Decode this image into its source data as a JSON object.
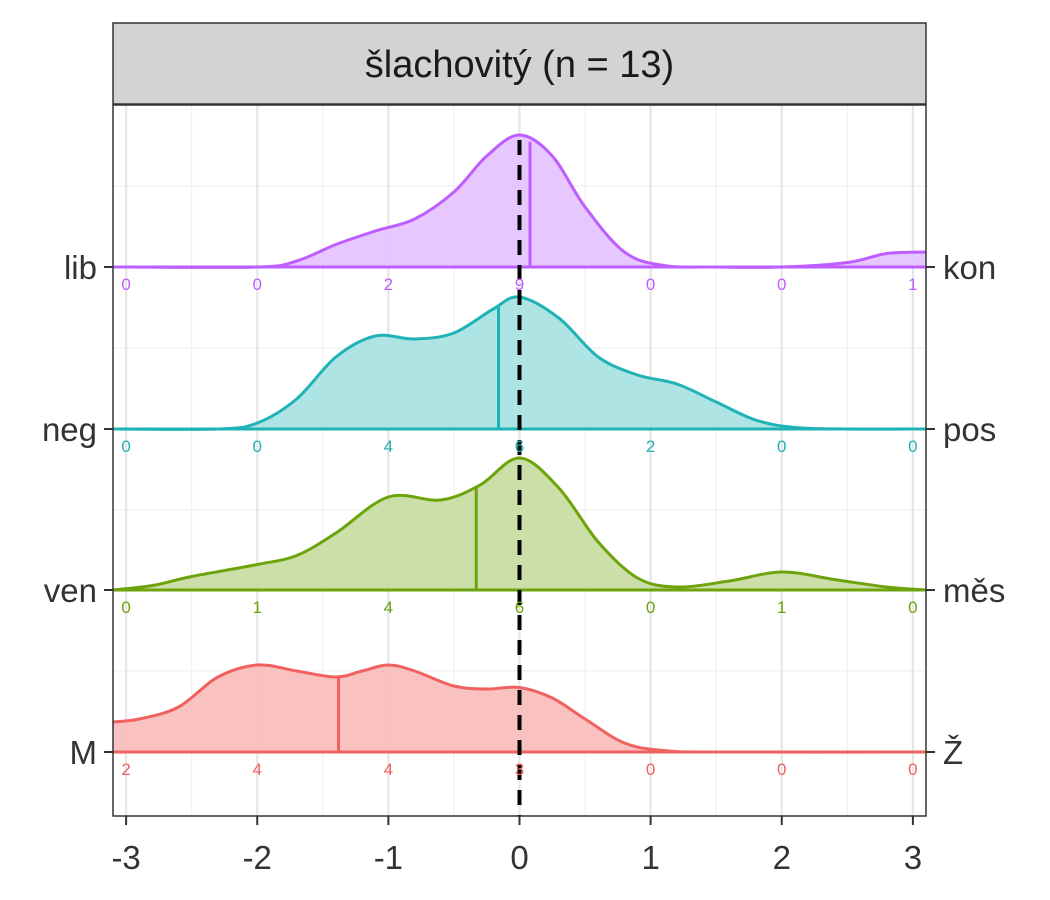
{
  "chart_data": {
    "type": "ridgeline",
    "title": "šlachovitý (n = 13)",
    "xlabel": "",
    "ylabel": "",
    "xlim": [
      -3.1,
      3.1
    ],
    "x_ticks": [
      -3,
      -2,
      -1,
      0,
      1,
      2,
      3
    ],
    "x_tick_labels": [
      "-3",
      "-2",
      "-1",
      "0",
      "1",
      "2",
      "3"
    ],
    "reference_line_x": 0,
    "bin_positions": [
      -3,
      -2,
      -1,
      0,
      1,
      2,
      3
    ],
    "grid": true,
    "series": [
      {
        "left_label": "M",
        "right_label": "Ž",
        "color": "#F0625F",
        "fill": "#F8BBBA",
        "mean": -1.38,
        "counts": [
          2,
          4,
          4,
          3,
          0,
          0,
          0
        ],
        "density": [
          [
            -3.1,
            0.2
          ],
          [
            -2.9,
            0.22
          ],
          [
            -2.6,
            0.3
          ],
          [
            -2.3,
            0.5
          ],
          [
            -2.0,
            0.58
          ],
          [
            -1.7,
            0.54
          ],
          [
            -1.4,
            0.5
          ],
          [
            -1.2,
            0.54
          ],
          [
            -1.0,
            0.58
          ],
          [
            -0.8,
            0.54
          ],
          [
            -0.5,
            0.44
          ],
          [
            -0.25,
            0.42
          ],
          [
            0.0,
            0.43
          ],
          [
            0.25,
            0.36
          ],
          [
            0.5,
            0.22
          ],
          [
            0.8,
            0.06
          ],
          [
            1.1,
            0.01
          ],
          [
            1.5,
            0.0
          ],
          [
            3.1,
            0.0
          ]
        ]
      },
      {
        "left_label": "ven",
        "right_label": "měs",
        "color": "#6DA30B",
        "fill": "#C6DB9E",
        "mean": -0.33,
        "counts": [
          0,
          1,
          4,
          6,
          0,
          1,
          0
        ],
        "density": [
          [
            -3.1,
            0.0
          ],
          [
            -2.8,
            0.03
          ],
          [
            -2.5,
            0.09
          ],
          [
            -2.0,
            0.17
          ],
          [
            -1.7,
            0.23
          ],
          [
            -1.4,
            0.38
          ],
          [
            -1.0,
            0.62
          ],
          [
            -0.6,
            0.6
          ],
          [
            -0.3,
            0.7
          ],
          [
            0.0,
            0.88
          ],
          [
            0.3,
            0.68
          ],
          [
            0.6,
            0.32
          ],
          [
            0.9,
            0.08
          ],
          [
            1.2,
            0.02
          ],
          [
            1.6,
            0.06
          ],
          [
            2.0,
            0.12
          ],
          [
            2.4,
            0.07
          ],
          [
            2.8,
            0.02
          ],
          [
            3.1,
            0.0
          ]
        ]
      },
      {
        "left_label": "neg",
        "right_label": "pos",
        "color": "#1FB3B5",
        "fill": "#A6E1E2",
        "mean": -0.16,
        "counts": [
          0,
          0,
          4,
          6,
          2,
          0,
          0
        ],
        "density": [
          [
            -3.1,
            0.0
          ],
          [
            -2.3,
            0.0
          ],
          [
            -2.0,
            0.04
          ],
          [
            -1.7,
            0.2
          ],
          [
            -1.4,
            0.48
          ],
          [
            -1.1,
            0.62
          ],
          [
            -0.8,
            0.6
          ],
          [
            -0.5,
            0.64
          ],
          [
            -0.2,
            0.8
          ],
          [
            0.0,
            0.88
          ],
          [
            0.3,
            0.74
          ],
          [
            0.6,
            0.48
          ],
          [
            0.9,
            0.36
          ],
          [
            1.2,
            0.3
          ],
          [
            1.5,
            0.18
          ],
          [
            1.8,
            0.06
          ],
          [
            2.1,
            0.01
          ],
          [
            2.5,
            0.0
          ],
          [
            3.1,
            0.0
          ]
        ]
      },
      {
        "left_label": "lib",
        "right_label": "kon",
        "color": "#BE5EFF",
        "fill": "#E4C1FF",
        "mean": 0.08,
        "counts": [
          0,
          0,
          2,
          9,
          0,
          0,
          1
        ],
        "density": [
          [
            -3.1,
            0.0
          ],
          [
            -2.0,
            0.0
          ],
          [
            -1.7,
            0.04
          ],
          [
            -1.4,
            0.15
          ],
          [
            -1.1,
            0.24
          ],
          [
            -0.8,
            0.32
          ],
          [
            -0.5,
            0.5
          ],
          [
            -0.25,
            0.74
          ],
          [
            0.0,
            0.88
          ],
          [
            0.25,
            0.74
          ],
          [
            0.5,
            0.4
          ],
          [
            0.8,
            0.1
          ],
          [
            1.1,
            0.01
          ],
          [
            1.5,
            0.0
          ],
          [
            2.0,
            0.0
          ],
          [
            2.5,
            0.03
          ],
          [
            2.8,
            0.09
          ],
          [
            3.1,
            0.1
          ]
        ]
      }
    ]
  }
}
